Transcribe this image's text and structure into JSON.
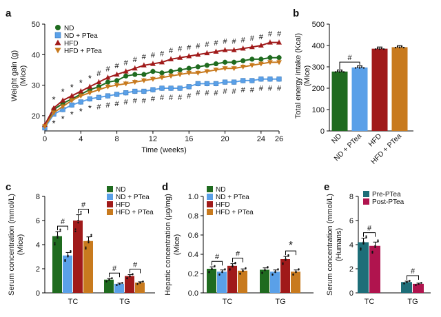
{
  "panels": {
    "a": {
      "letter": "a",
      "ylabel": "Weight gain (g)",
      "ylabel2": "(Mice)",
      "xlabel": "Time (weeks)"
    },
    "b": {
      "letter": "b",
      "ylabel": "Total energy intake (Kcal)",
      "ylabel2": "(Mice)"
    },
    "c": {
      "letter": "c",
      "ylabel": "Serum concentration (mmol/L)",
      "ylabel2": "(Mice)"
    },
    "d": {
      "letter": "d",
      "ylabel": "Hepatic concentration (µg/mg)",
      "ylabel2": "(Mice)"
    },
    "e": {
      "letter": "e",
      "ylabel": "Serum concentration (mmol/L)",
      "ylabel2": "(Humans)"
    }
  },
  "colors": {
    "ND": "#1f6b1f",
    "ND_PTea": "#5aa0e8",
    "HFD": "#a01a1a",
    "HFD_PTea": "#c87a1e",
    "Pre": "#1e6e78",
    "Post": "#b0144e"
  },
  "marks": {
    "hash": "#",
    "star": "*"
  },
  "chart_data": [
    {
      "panel": "a",
      "type": "line",
      "xlabel": "Time (weeks)",
      "ylabel": "Weight gain (g) (Mice)",
      "x": [
        0,
        1,
        2,
        3,
        4,
        5,
        6,
        7,
        8,
        9,
        10,
        11,
        12,
        13,
        14,
        15,
        16,
        17,
        18,
        19,
        20,
        21,
        22,
        23,
        24,
        25,
        26
      ],
      "xticks": [
        0,
        4,
        8,
        12,
        16,
        20,
        24,
        26
      ],
      "yticks": [
        20,
        30,
        40,
        50
      ],
      "xlim": [
        0,
        26
      ],
      "ylim": [
        15,
        50
      ],
      "legend_position": "top-left",
      "series": [
        {
          "name": "ND",
          "color": "#1f6b1f",
          "marker": "circle",
          "values": [
            16.5,
            22,
            24,
            25.5,
            27,
            28.5,
            29.5,
            31,
            31.5,
            33,
            33.5,
            33.5,
            34.5,
            34,
            34.5,
            35,
            35.5,
            36,
            36.5,
            37,
            37.5,
            37.5,
            38,
            38.5,
            38.5,
            39,
            39
          ]
        },
        {
          "name": "ND + PTea",
          "color": "#5aa0e8",
          "marker": "square",
          "values": [
            16,
            20.5,
            22,
            23.5,
            24.5,
            25.5,
            26,
            26.5,
            27,
            27.5,
            28,
            28,
            28.5,
            29,
            29,
            29,
            29.5,
            30.5,
            30.5,
            30.5,
            31,
            31,
            31.5,
            31.5,
            32,
            32,
            32
          ]
        },
        {
          "name": "HFD",
          "color": "#a01a1a",
          "marker": "triangle-up",
          "values": [
            17,
            22.5,
            25,
            26.5,
            28,
            29.5,
            31,
            32.5,
            33.5,
            34.5,
            35.5,
            36.5,
            37,
            37.5,
            38.5,
            39,
            39.5,
            40,
            40.5,
            41,
            41.5,
            41.5,
            42,
            42.5,
            43,
            44,
            44
          ]
        },
        {
          "name": "HFD + PTea",
          "color": "#c87a1e",
          "marker": "triangle-down",
          "values": [
            16.5,
            21,
            23,
            25,
            26.5,
            27.5,
            28.5,
            29.5,
            30,
            30.5,
            31,
            31.5,
            32,
            32.5,
            33,
            33.5,
            34,
            34,
            34.5,
            35,
            35.5,
            35.5,
            36,
            36.5,
            37,
            37.5,
            37.5
          ]
        }
      ],
      "legend": [
        "ND",
        "ND + PTea",
        "HFD",
        "HFD + PTea"
      ]
    },
    {
      "panel": "b",
      "type": "bar",
      "ylabel": "Total energy intake (Kcal) (Mice)",
      "categories": [
        "ND",
        "ND + PTea",
        "HFD",
        "HFD + PTea"
      ],
      "values": [
        278,
        297,
        385,
        392
      ],
      "colors": [
        "#1f6b1f",
        "#5aa0e8",
        "#a01a1a",
        "#c87a1e"
      ],
      "yticks": [
        0,
        100,
        200,
        300,
        400,
        500
      ],
      "ylim": [
        0,
        500
      ],
      "annotations": [
        "#"
      ]
    },
    {
      "panel": "c",
      "type": "bar",
      "ylabel": "Serum concentration (mmol/L) (Mice)",
      "categories": [
        "TC",
        "TG"
      ],
      "yticks": [
        0,
        2,
        4,
        6,
        8
      ],
      "ylim": [
        0,
        8
      ],
      "legend_position": "top-right",
      "series": [
        {
          "name": "ND",
          "color": "#1f6b1f",
          "values": [
            4.7,
            1.1
          ]
        },
        {
          "name": "ND + PTea",
          "color": "#5aa0e8",
          "values": [
            3.1,
            0.75
          ]
        },
        {
          "name": "HFD",
          "color": "#a01a1a",
          "values": [
            6.0,
            1.4
          ]
        },
        {
          "name": "HFD + PTea",
          "color": "#c87a1e",
          "values": [
            4.3,
            0.85
          ]
        }
      ],
      "annotations": [
        "#",
        "#",
        "#",
        "#"
      ]
    },
    {
      "panel": "d",
      "type": "bar",
      "ylabel": "Hepatic concentration (µg/mg) (Mice)",
      "categories": [
        "TC",
        "TG"
      ],
      "yticks": [
        0.0,
        0.2,
        0.4,
        0.6,
        0.8,
        1.0
      ],
      "ytick_labels": [
        "0.0",
        "0.2",
        "0.4",
        "0.6",
        "0.8",
        "1.0"
      ],
      "ylim": [
        0,
        1.0
      ],
      "legend_position": "top-left",
      "series": [
        {
          "name": "ND",
          "color": "#1f6b1f",
          "values": [
            0.25,
            0.24
          ]
        },
        {
          "name": "ND + PTea",
          "color": "#5aa0e8",
          "values": [
            0.22,
            0.22
          ]
        },
        {
          "name": "HFD",
          "color": "#a01a1a",
          "values": [
            0.28,
            0.35
          ]
        },
        {
          "name": "HFD + PTea",
          "color": "#c87a1e",
          "values": [
            0.23,
            0.22
          ]
        }
      ],
      "annotations": [
        "#",
        "#",
        "*"
      ]
    },
    {
      "panel": "e",
      "type": "bar",
      "ylabel": "Serum concentration (mmol/L) (Humans)",
      "categories": [
        "TC",
        "TG"
      ],
      "yticks": [
        0,
        2,
        4,
        6,
        8
      ],
      "ylim": [
        0,
        8
      ],
      "legend_position": "top-right",
      "series": [
        {
          "name": "Pre-PTea",
          "color": "#1e6e78",
          "values": [
            4.2,
            0.9
          ]
        },
        {
          "name": "Post-PTea",
          "color": "#b0144e",
          "values": [
            3.9,
            0.75
          ]
        }
      ],
      "annotations": [
        "#",
        "#"
      ]
    }
  ]
}
